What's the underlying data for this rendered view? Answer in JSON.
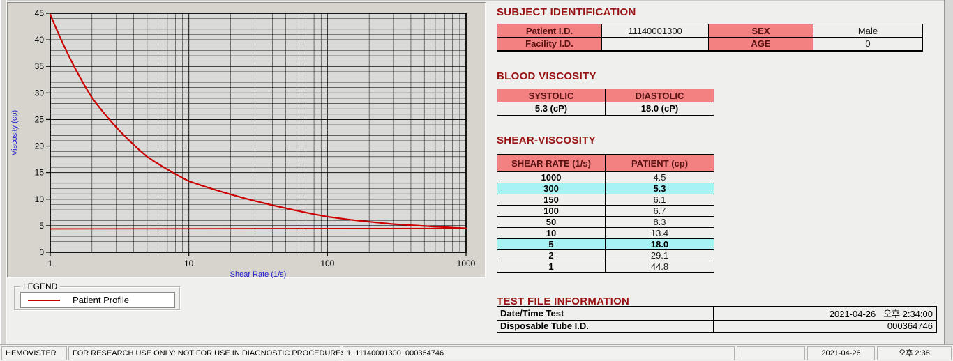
{
  "colors": {
    "header_pink": "#F48181",
    "highlight_cyan": "#A7F3F3",
    "title_red": "#981414",
    "curve_red": "#CC0000",
    "axis_blue": "#2222CC"
  },
  "subject_identification": {
    "title": "SUBJECT IDENTIFICATION",
    "patient_id_label": "Patient I.D.",
    "patient_id": "11140001300",
    "sex_label": "SEX",
    "sex": "Male",
    "facility_id_label": "Facility I.D.",
    "facility_id": "",
    "age_label": "AGE",
    "age": "0"
  },
  "blood_viscosity": {
    "title": "BLOOD VISCOSITY",
    "systolic_label": "SYSTOLIC",
    "diastolic_label": "DIASTOLIC",
    "systolic_value": "5.3 (cP)",
    "diastolic_value": "18.0 (cP)"
  },
  "shear_viscosity": {
    "title": "SHEAR-VISCOSITY",
    "col_shear_rate": "SHEAR RATE (1/s)",
    "col_patient": "PATIENT (cp)",
    "rows": [
      {
        "rate": "1000",
        "value": "4.5",
        "highlight": false
      },
      {
        "rate": "300",
        "value": "5.3",
        "highlight": true
      },
      {
        "rate": "150",
        "value": "6.1",
        "highlight": false
      },
      {
        "rate": "100",
        "value": "6.7",
        "highlight": false
      },
      {
        "rate": "50",
        "value": "8.3",
        "highlight": false
      },
      {
        "rate": "10",
        "value": "13.4",
        "highlight": false
      },
      {
        "rate": "5",
        "value": "18.0",
        "highlight": true
      },
      {
        "rate": "2",
        "value": "29.1",
        "highlight": false
      },
      {
        "rate": "1",
        "value": "44.8",
        "highlight": false
      }
    ]
  },
  "test_file_information": {
    "title": "TEST FILE INFORMATION",
    "rows": [
      {
        "label": "Date/Time Test",
        "value": "2021-04-26   오후 2:34:00"
      },
      {
        "label": "Disposable Tube I.D.",
        "value": "000364746"
      }
    ]
  },
  "legend": {
    "box_label": "LEGEND",
    "series_label": "Patient Profile",
    "line_color": "#C00000"
  },
  "status_bar": {
    "app_name": "HEMOVISTER",
    "research_notice": "FOR RESEARCH USE ONLY: NOT FOR USE IN DIAGNOSTIC PROCEDURES",
    "record_info": "1  11140001300  000364746",
    "spare": "",
    "date": "2021-04-26",
    "time": "오후 2:38"
  },
  "chart_data": {
    "type": "line",
    "title": "",
    "xlabel": "Shear Rate (1/s)",
    "ylabel": "Viscosity (cp)",
    "x_scale": "log",
    "xlim": [
      1,
      1000
    ],
    "ylim": [
      0,
      45
    ],
    "xticks": [
      1,
      10,
      100,
      1000
    ],
    "ytick_step": 5,
    "y_minor_step": 1,
    "grid": true,
    "legend_position": "below-left",
    "line_color": "#CC0000",
    "series": [
      {
        "name": "Patient Profile",
        "points": [
          [
            1,
            44.8
          ],
          [
            2,
            29.1
          ],
          [
            5,
            18.0
          ],
          [
            10,
            13.4
          ],
          [
            50,
            8.3
          ],
          [
            100,
            6.7
          ],
          [
            150,
            6.1
          ],
          [
            300,
            5.3
          ],
          [
            1000,
            4.5
          ]
        ]
      }
    ],
    "baseline": {
      "name": "asymptote-line",
      "points": [
        [
          1,
          4.4
        ],
        [
          1000,
          4.5
        ]
      ]
    }
  }
}
